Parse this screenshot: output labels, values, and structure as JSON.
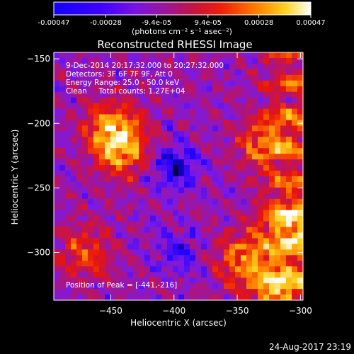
{
  "colorbar": {
    "tick_labels": [
      "-0.00047",
      "-0.00028",
      "-9.4e-05",
      "9.4e-05",
      "0.00028",
      "0.00047"
    ],
    "tick_values": [
      -0.00047,
      -0.00028,
      -9.4e-05,
      9.4e-05,
      0.00028,
      0.00047
    ],
    "min": -0.00047,
    "max": 0.00047,
    "units_label": "(photons cm⁻² s⁻¹ asec⁻²)"
  },
  "chart_data": {
    "type": "heatmap",
    "title": "Reconstructed RHESSI Image",
    "xlabel": "Heliocentric X (arcsec)",
    "ylabel": "Heliocentric Y (arcsec)",
    "xlim": [
      -495,
      -298
    ],
    "ylim": [
      -337,
      -145
    ],
    "x_ticks": [
      -450,
      -400,
      -350,
      -300
    ],
    "x_tick_labels": [
      "−450",
      "−400",
      "−350",
      "−300"
    ],
    "y_ticks": [
      -150,
      -200,
      -250,
      -300
    ],
    "y_tick_labels": [
      "−150",
      "−200",
      "−250",
      "−300"
    ],
    "colormap": [
      "#000000",
      "#1a00ff",
      "#7a1ae8",
      "#b01478",
      "#e8140a",
      "#ff7a00",
      "#ffd21e",
      "#ffffff"
    ],
    "bright_sources": [
      {
        "x": -450,
        "y": -205,
        "intensity": 0.9
      },
      {
        "x": -440,
        "y": -220,
        "intensity": 0.85
      },
      {
        "x": -330,
        "y": -215,
        "intensity": 0.7
      },
      {
        "x": -310,
        "y": -280,
        "intensity": 0.85
      },
      {
        "x": -345,
        "y": -305,
        "intensity": 0.85
      },
      {
        "x": -320,
        "y": -330,
        "intensity": 0.9
      },
      {
        "x": -470,
        "y": -300,
        "intensity": 0.6
      }
    ],
    "dark_sources": [
      {
        "x": -400,
        "y": -235,
        "intensity": 0.8
      },
      {
        "x": -395,
        "y": -300,
        "intensity": 0.5
      }
    ],
    "annotations": [
      "9-Dec-2014 20:17:32.000 to 20:27:32.000",
      "Detectors: 3F 6F 7F 9F, Att 0",
      "Energy Range: 25.0 - 50.0 keV",
      "Clean     Total counts: 1.27E+04"
    ],
    "peak_label": "Position of Peak = [-441,-216]"
  },
  "footer": {
    "timestamp": "24-Aug-2017 23:19"
  }
}
